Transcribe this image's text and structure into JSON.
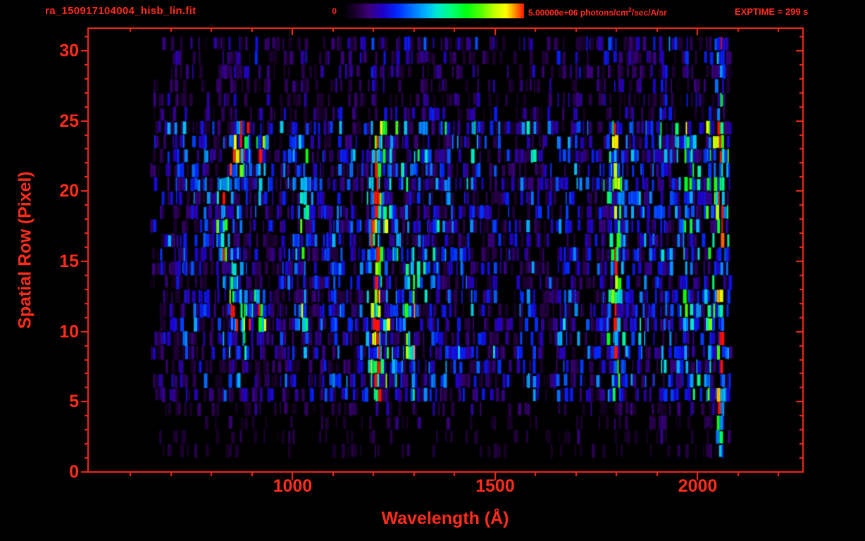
{
  "colors": {
    "background": "#000000",
    "accent": "#ff2c1c"
  },
  "header": {
    "title": "ra_150917104004_hisb_lin.fit",
    "colorbar_min_label": "0",
    "colorbar_max_label_prefix": "5.00000e+06 photons/cm",
    "colorbar_max_label_sup": "2",
    "colorbar_max_label_suffix": "/sec/A/sr",
    "exptime_label": "EXPTIME = 299 s"
  },
  "chart_data": {
    "type": "heatmap",
    "title": "ra_150917104004_hisb_lin.fit",
    "xlabel": "Wavelength (Å)",
    "ylabel": "Spatial Row (Pixel)",
    "x_ticks": [
      1000,
      1500,
      2000
    ],
    "x_minor_tick_step": 100,
    "y_ticks": [
      0,
      5,
      10,
      15,
      20,
      25,
      30
    ],
    "y_minor_tick_step": 1,
    "x_range": [
      495,
      2260
    ],
    "y_axis_max": 31.6,
    "colorbar": {
      "min": 0,
      "max": 5000000,
      "max_label": "5.00000e+06",
      "units": "photons/cm²/sec/A/sr"
    },
    "exposure_time_s": 299,
    "data_extent": {
      "wavelength": [
        655,
        2085
      ],
      "rows": [
        0,
        30
      ]
    },
    "spatial_profile": [
      0.03,
      0.14,
      0.18,
      0.18,
      0.22,
      0.55,
      0.6,
      0.55,
      0.62,
      0.6,
      0.65,
      0.62,
      0.55,
      0.52,
      0.55,
      0.6,
      0.58,
      0.6,
      0.62,
      0.66,
      0.72,
      0.7,
      0.66,
      0.62,
      0.74,
      0.34,
      0.3,
      0.3,
      0.32,
      0.36,
      0.44
    ],
    "continuum": [
      [
        495,
        0
      ],
      [
        640,
        0
      ],
      [
        660,
        0.22
      ],
      [
        700,
        0.3
      ],
      [
        900,
        0.3
      ],
      [
        1000,
        0.3
      ],
      [
        1100,
        0.33
      ],
      [
        1250,
        0.38
      ],
      [
        1350,
        0.36
      ],
      [
        1500,
        0.32
      ],
      [
        1650,
        0.3
      ],
      [
        1750,
        0.34
      ],
      [
        1850,
        0.38
      ],
      [
        1925,
        0.46
      ],
      [
        2000,
        0.5
      ],
      [
        2045,
        0.55
      ],
      [
        2075,
        0.5
      ],
      [
        2085,
        0
      ],
      [
        2260,
        0
      ]
    ],
    "lines": [
      {
        "center": 1210,
        "width": 9,
        "amp": 0.72,
        "rows": [
          5,
          24
        ],
        "label": "bright emission line core (Lyman-alpha)"
      },
      {
        "center": 1210,
        "width": 30,
        "amp": 0.22,
        "rows": [
          5,
          24
        ],
        "label": "emission line wings"
      },
      {
        "center": 1020,
        "width": 12,
        "amp": 0.32,
        "rows": [
          10,
          23
        ],
        "label": "vertical green streak"
      },
      {
        "center": 1290,
        "width": 20,
        "amp": 0.26,
        "rows": [
          6,
          14
        ],
        "label": "secondary band"
      },
      {
        "center": 1795,
        "width": 14,
        "amp": 0.33,
        "rows": [
          5,
          24
        ],
        "label": "green band"
      },
      {
        "center": 2058,
        "width": 9,
        "amp": 0.38,
        "rows": [
          1,
          30
        ],
        "label": "bright detector edge"
      }
    ],
    "ring_feature": {
      "label": "C-shaped bright blob",
      "center_wavelength": 890,
      "center_row": 16.5,
      "radius_wavelength": 64,
      "radius_rows": 6.4,
      "band": 0.38,
      "opening_half_angle_deg": 52,
      "amp": 0.5
    },
    "colormap": [
      [
        0.0,
        "#000000"
      ],
      [
        0.07,
        "#1c0030"
      ],
      [
        0.14,
        "#3a0078"
      ],
      [
        0.22,
        "#2000c8"
      ],
      [
        0.3,
        "#0028ff"
      ],
      [
        0.38,
        "#0070ff"
      ],
      [
        0.46,
        "#00b4ff"
      ],
      [
        0.52,
        "#00e8d0"
      ],
      [
        0.6,
        "#00ff78"
      ],
      [
        0.68,
        "#00ff10"
      ],
      [
        0.76,
        "#50ff00"
      ],
      [
        0.84,
        "#c8ff00"
      ],
      [
        0.9,
        "#ffff00"
      ],
      [
        0.95,
        "#ff8c00"
      ],
      [
        1.0,
        "#ff1000"
      ]
    ],
    "legend_position": "top colorbar",
    "grid": false
  }
}
